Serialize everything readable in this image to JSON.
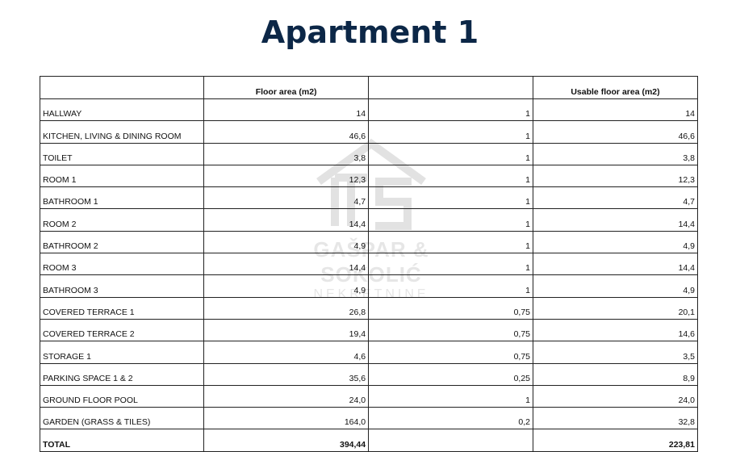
{
  "title": "Apartment 1",
  "table": {
    "headers": [
      "",
      "Floor area (m2)",
      "",
      "Usable floor area (m2)"
    ],
    "rows": [
      [
        "HALLWAY",
        "14",
        "1",
        "14"
      ],
      [
        "KITCHEN, LIVING & DINING ROOM",
        "46,6",
        "1",
        "46,6"
      ],
      [
        "TOILET",
        "3,8",
        "1",
        "3,8"
      ],
      [
        "ROOM 1",
        "12,3",
        "1",
        "12,3"
      ],
      [
        "BATHROOM 1",
        "4,7",
        "1",
        "4,7"
      ],
      [
        "ROOM 2",
        "14,4",
        "1",
        "14,4"
      ],
      [
        "BATHROOM 2",
        "4,9",
        "1",
        "4,9"
      ],
      [
        "ROOM 3",
        "14,4",
        "1",
        "14,4"
      ],
      [
        "BATHROOM 3",
        "4,9",
        "1",
        "4,9"
      ],
      [
        "COVERED TERRACE 1",
        "26,8",
        "0,75",
        "20,1"
      ],
      [
        "COVERED TERRACE 2",
        "19,4",
        "0,75",
        "14,6"
      ],
      [
        "STORAGE 1",
        "4,6",
        "0,75",
        "3,5"
      ],
      [
        "PARKING SPACE 1 & 2",
        "35,6",
        "0,25",
        "8,9"
      ],
      [
        "GROUND FLOOR POOL",
        "24,0",
        "1",
        "24,0"
      ],
      [
        "GARDEN (GRASS & TILES)",
        "164,0",
        "0,2",
        "32,8"
      ]
    ],
    "total": [
      "TOTAL",
      "394,44",
      "",
      "223,81"
    ]
  },
  "watermark": {
    "line1": "GAŠPAR & SOKOLIĆ",
    "line2": "NEKRETNINE"
  },
  "colors": {
    "title": "#0c2747"
  }
}
